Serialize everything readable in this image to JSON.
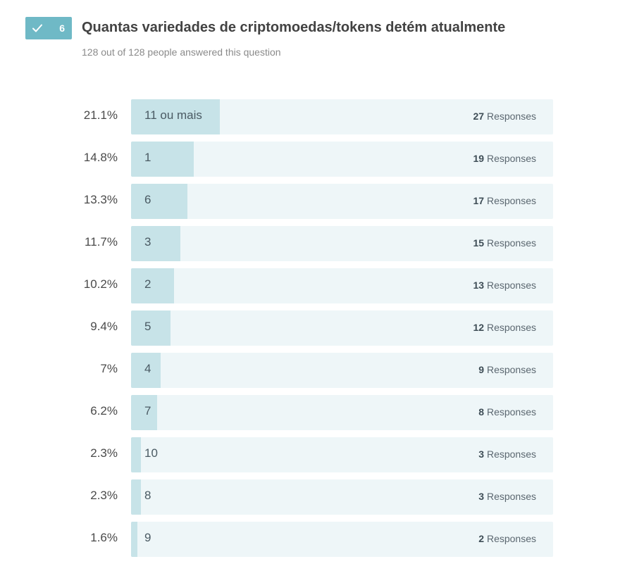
{
  "question": {
    "number": "6",
    "title": "Quantas variedades de criptomoedas/tokens detém atualmente",
    "subtitle": "128 out of 128 people answered this question",
    "badge_color": "#6fb9c6",
    "badge_icon": "check-icon"
  },
  "colors": {
    "bar_fill": "#c7e3e8",
    "bar_track": "#eef6f8"
  },
  "chart_data": {
    "type": "bar",
    "orientation": "horizontal",
    "total": 128,
    "response_label": "Responses",
    "categories": [
      "11 ou mais",
      "1",
      "6",
      "3",
      "2",
      "5",
      "4",
      "7",
      "10",
      "8",
      "9"
    ],
    "values": [
      27,
      19,
      17,
      15,
      13,
      12,
      9,
      8,
      3,
      3,
      2
    ],
    "percentages": [
      "21.1%",
      "14.8%",
      "13.3%",
      "11.7%",
      "10.2%",
      "9.4%",
      "7%",
      "6.2%",
      "2.3%",
      "2.3%",
      "1.6%"
    ],
    "title": "Quantas variedades de criptomoedas/tokens detém atualmente",
    "xlabel": "",
    "ylabel": ""
  }
}
